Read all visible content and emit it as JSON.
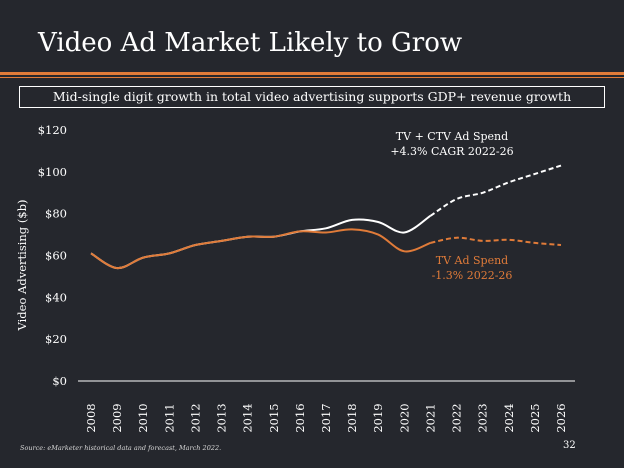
{
  "slide": {
    "title": "Video Ad Market Likely to Grow",
    "subtitle": "Mid-single digit growth in total video advertising supports GDP+ revenue growth",
    "source": "Source: eMarketer historical data and forecast, March 2022.",
    "page_number": "32"
  },
  "colors": {
    "background": "#25272d",
    "accent": "#e07b39",
    "ctv_line": "#ffffff",
    "tv_line": "#e07b39"
  },
  "chart_data": {
    "type": "line",
    "title": "",
    "xlabel": "",
    "ylabel": "Video Advertising ($b)",
    "ylim": [
      0,
      120
    ],
    "yticks": [
      "$0",
      "$20",
      "$40",
      "$60",
      "$80",
      "$100",
      "$120"
    ],
    "ytick_values": [
      0,
      20,
      40,
      60,
      80,
      100,
      120
    ],
    "x": [
      "2008",
      "2009",
      "2010",
      "2011",
      "2012",
      "2013",
      "2014",
      "2015",
      "2016",
      "2017",
      "2018",
      "2019",
      "2020",
      "2021",
      "2022",
      "2023",
      "2024",
      "2025",
      "2026"
    ],
    "forecast_start": "2021",
    "series": [
      {
        "name": "TV + CTV Ad Spend",
        "label_lines": [
          "TV + CTV Ad Spend",
          "+4.3% CAGR 2022-26"
        ],
        "color": "#ffffff",
        "values": [
          61,
          54,
          59,
          61,
          65,
          67,
          69,
          69,
          71.5,
          73,
          77,
          76,
          71,
          79,
          87,
          90,
          95,
          99,
          103
        ]
      },
      {
        "name": "TV Ad Spend",
        "label_lines": [
          "TV Ad Spend",
          "-1.3% 2022-26"
        ],
        "color": "#e07b39",
        "values": [
          61,
          54,
          59,
          61,
          65,
          67,
          69,
          69,
          71.5,
          71,
          72.5,
          70,
          62,
          66,
          68.5,
          67,
          67.5,
          66,
          65
        ]
      }
    ]
  }
}
